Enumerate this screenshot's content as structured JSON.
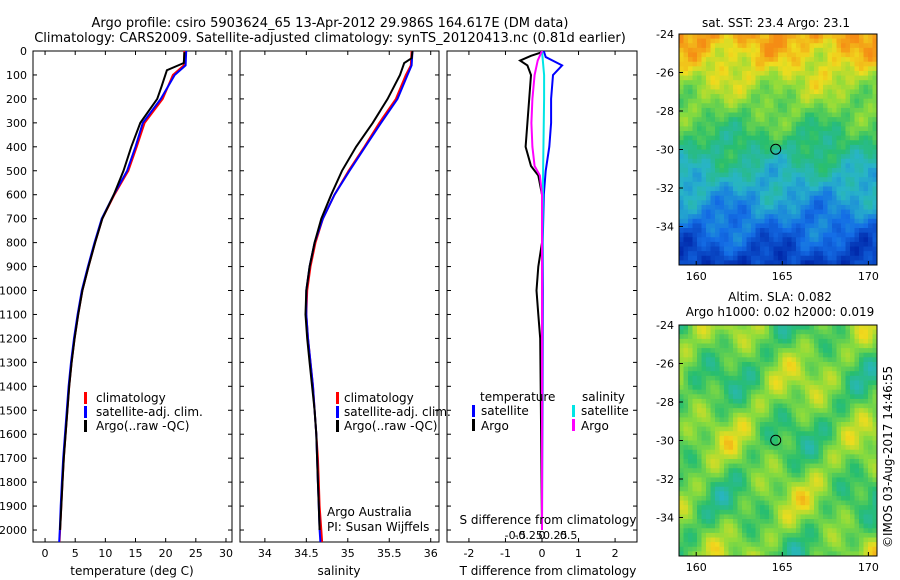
{
  "header": {
    "line1": "Argo profile: csiro 5903624_65 13-Apr-2012 29.986S 164.617E (DM data)",
    "line2": "Climatology: CARS2009. Satellite-adjusted climatology: synTS_20120413.nc (0.81d earlier)"
  },
  "footer": {
    "stamp": "©IMOS 03-Aug-2017 14:46:55",
    "institution": "Argo Australia",
    "pi": "PI: Susan Wijffels"
  },
  "colors": {
    "climatology": "#ff0000",
    "satellite": "#0000ff",
    "argo": "#000000",
    "salinity_satellite": "#00e5e5",
    "salinity_argo": "#ff00ff"
  },
  "chart_data": [
    {
      "type": "line",
      "panel": "temperature",
      "xlabel": "temperature (deg C)",
      "ylabel": "",
      "xlim": [
        -2,
        31
      ],
      "ylim": [
        2050,
        0
      ],
      "xticks": [
        0,
        5,
        10,
        15,
        20,
        25,
        30
      ],
      "yticks": [
        0,
        100,
        200,
        300,
        400,
        500,
        600,
        700,
        800,
        900,
        1000,
        1100,
        1200,
        1300,
        1400,
        1500,
        1600,
        1700,
        1800,
        1900,
        2000
      ],
      "legend": [
        "climatology",
        "satellite-adj. clim.",
        "Argo(..raw -QC)"
      ],
      "series": [
        {
          "name": "climatology",
          "color": "#ff0000",
          "points": [
            [
              23.1,
              0
            ],
            [
              23.0,
              60
            ],
            [
              21.2,
              100
            ],
            [
              19.5,
              200
            ],
            [
              16.5,
              300
            ],
            [
              15.2,
              400
            ],
            [
              13.8,
              500
            ],
            [
              11.5,
              600
            ],
            [
              9.5,
              700
            ],
            [
              8.3,
              800
            ],
            [
              7.2,
              900
            ],
            [
              6.2,
              1000
            ],
            [
              5.5,
              1100
            ],
            [
              4.9,
              1200
            ],
            [
              4.4,
              1300
            ],
            [
              4.0,
              1400
            ],
            [
              3.7,
              1500
            ],
            [
              3.4,
              1600
            ],
            [
              3.1,
              1700
            ],
            [
              2.9,
              1800
            ],
            [
              2.7,
              1900
            ],
            [
              2.5,
              2000
            ],
            [
              2.4,
              2050
            ]
          ]
        },
        {
          "name": "satellite-adj. clim.",
          "color": "#0000ff",
          "points": [
            [
              23.4,
              0
            ],
            [
              23.3,
              60
            ],
            [
              21.5,
              100
            ],
            [
              19.2,
              200
            ],
            [
              16.2,
              300
            ],
            [
              15.0,
              400
            ],
            [
              13.6,
              500
            ],
            [
              11.4,
              600
            ],
            [
              9.4,
              700
            ],
            [
              8.2,
              800
            ],
            [
              7.1,
              900
            ],
            [
              6.1,
              1000
            ],
            [
              5.4,
              1100
            ],
            [
              4.8,
              1200
            ],
            [
              4.3,
              1300
            ],
            [
              3.9,
              1400
            ],
            [
              3.6,
              1500
            ],
            [
              3.3,
              1600
            ],
            [
              3.0,
              1700
            ],
            [
              2.8,
              1800
            ],
            [
              2.6,
              1900
            ],
            [
              2.45,
              2000
            ],
            [
              2.35,
              2050
            ]
          ]
        },
        {
          "name": "Argo(..raw -QC)",
          "color": "#000000",
          "points": [
            [
              23.1,
              5
            ],
            [
              23.0,
              50
            ],
            [
              20.2,
              80
            ],
            [
              19.3,
              150
            ],
            [
              18.6,
              200
            ],
            [
              15.8,
              300
            ],
            [
              14.3,
              400
            ],
            [
              13.0,
              500
            ],
            [
              11.4,
              600
            ],
            [
              9.5,
              700
            ],
            [
              8.3,
              800
            ],
            [
              7.2,
              900
            ],
            [
              6.2,
              1000
            ],
            [
              5.5,
              1100
            ],
            [
              4.9,
              1200
            ],
            [
              4.4,
              1300
            ],
            [
              4.0,
              1400
            ],
            [
              3.7,
              1500
            ],
            [
              3.4,
              1600
            ],
            [
              3.1,
              1700
            ],
            [
              2.9,
              1800
            ],
            [
              2.7,
              1900
            ],
            [
              2.5,
              2000
            ]
          ]
        }
      ]
    },
    {
      "type": "line",
      "panel": "salinity",
      "xlabel": "salinity",
      "xlim": [
        33.7,
        36.1
      ],
      "ylim": [
        2050,
        0
      ],
      "xticks": [
        34,
        34.5,
        35,
        35.5,
        36
      ],
      "xticklabels": [
        "34",
        "34.5",
        "35",
        "35.5",
        "36"
      ],
      "legend": [
        "climatology",
        "satellite-adj. clim.",
        "Argo(..raw -QC)"
      ],
      "series": [
        {
          "name": "climatology",
          "color": "#ff0000",
          "points": [
            [
              35.77,
              0
            ],
            [
              35.76,
              60
            ],
            [
              35.7,
              100
            ],
            [
              35.58,
              200
            ],
            [
              35.38,
              300
            ],
            [
              35.2,
              400
            ],
            [
              35.01,
              500
            ],
            [
              34.84,
              600
            ],
            [
              34.7,
              700
            ],
            [
              34.61,
              800
            ],
            [
              34.55,
              900
            ],
            [
              34.51,
              1000
            ],
            [
              34.5,
              1100
            ],
            [
              34.52,
              1200
            ],
            [
              34.55,
              1300
            ],
            [
              34.58,
              1400
            ],
            [
              34.6,
              1500
            ],
            [
              34.62,
              1600
            ],
            [
              34.64,
              1700
            ],
            [
              34.65,
              1800
            ],
            [
              34.66,
              1900
            ],
            [
              34.68,
              2000
            ],
            [
              34.69,
              2050
            ]
          ]
        },
        {
          "name": "satellite-adj. clim.",
          "color": "#0000ff",
          "points": [
            [
              35.78,
              0
            ],
            [
              35.77,
              60
            ],
            [
              35.72,
              100
            ],
            [
              35.6,
              200
            ],
            [
              35.4,
              300
            ],
            [
              35.21,
              400
            ],
            [
              35.02,
              500
            ],
            [
              34.84,
              600
            ],
            [
              34.7,
              700
            ],
            [
              34.6,
              800
            ],
            [
              34.54,
              900
            ],
            [
              34.5,
              1000
            ],
            [
              34.5,
              1100
            ],
            [
              34.52,
              1200
            ],
            [
              34.55,
              1300
            ],
            [
              34.58,
              1400
            ],
            [
              34.6,
              1500
            ],
            [
              34.62,
              1600
            ],
            [
              34.63,
              1700
            ],
            [
              34.64,
              1800
            ],
            [
              34.65,
              1900
            ],
            [
              34.66,
              2000
            ],
            [
              34.67,
              2050
            ]
          ]
        },
        {
          "name": "Argo(..raw -QC)",
          "color": "#000000",
          "points": [
            [
              35.78,
              0
            ],
            [
              35.77,
              30
            ],
            [
              35.68,
              50
            ],
            [
              35.63,
              100
            ],
            [
              35.48,
              200
            ],
            [
              35.3,
              300
            ],
            [
              35.1,
              400
            ],
            [
              34.93,
              500
            ],
            [
              34.8,
              600
            ],
            [
              34.68,
              700
            ],
            [
              34.6,
              800
            ],
            [
              34.54,
              900
            ],
            [
              34.5,
              1000
            ],
            [
              34.49,
              1100
            ],
            [
              34.51,
              1200
            ],
            [
              34.54,
              1300
            ],
            [
              34.57,
              1400
            ],
            [
              34.6,
              1500
            ],
            [
              34.62,
              1600
            ],
            [
              34.63,
              1700
            ],
            [
              34.64,
              1800
            ],
            [
              34.65,
              1900
            ],
            [
              34.66,
              2000
            ]
          ]
        }
      ]
    },
    {
      "type": "line",
      "panel": "difference",
      "xlabel": "T difference from climatology",
      "xlabel_top": "S difference from climatology",
      "xlim": [
        -2.6,
        2.6
      ],
      "ylim": [
        2050,
        0
      ],
      "xticks": [
        -2,
        -1,
        0,
        1,
        2
      ],
      "s_ticks": [
        -0.5,
        -0.25,
        0,
        0.25,
        0.5
      ],
      "s_ticklabels": [
        "-0.5",
        "-0.25",
        "0",
        "0.25",
        "0.5"
      ],
      "legend_titles": [
        "temperature",
        "salinity"
      ],
      "legend": [
        "satellite",
        "Argo",
        "satellite",
        "Argo"
      ],
      "series": [
        {
          "name": "satellite",
          "group": "temperature",
          "color": "#0000ff",
          "points": [
            [
              0.05,
              0
            ],
            [
              0.1,
              25
            ],
            [
              0.55,
              60
            ],
            [
              0.3,
              100
            ],
            [
              0.25,
              200
            ],
            [
              0.25,
              300
            ],
            [
              0.2,
              400
            ],
            [
              0.1,
              500
            ],
            [
              0.05,
              600
            ],
            [
              0.02,
              800
            ],
            [
              0.02,
              1000
            ],
            [
              0.01,
              1500
            ],
            [
              0.0,
              2000
            ]
          ]
        },
        {
          "name": "Argo",
          "group": "temperature",
          "color": "#000000",
          "points": [
            [
              0.0,
              5
            ],
            [
              -0.3,
              20
            ],
            [
              -0.6,
              40
            ],
            [
              -0.4,
              60
            ],
            [
              -0.3,
              100
            ],
            [
              -0.35,
              200
            ],
            [
              -0.4,
              300
            ],
            [
              -0.45,
              400
            ],
            [
              -0.3,
              480
            ],
            [
              -0.1,
              520
            ],
            [
              0.0,
              600
            ],
            [
              0.0,
              800
            ],
            [
              -0.1,
              900
            ],
            [
              -0.15,
              1000
            ],
            [
              -0.1,
              1100
            ],
            [
              -0.05,
              1200
            ],
            [
              -0.03,
              1500
            ],
            [
              0.0,
              2000
            ]
          ]
        },
        {
          "name": "satellite",
          "group": "salinity",
          "color": "#00e5e5",
          "points": [
            [
              0.0,
              0
            ],
            [
              0.02,
              100
            ],
            [
              0.02,
              200
            ],
            [
              0.01,
              500
            ],
            [
              0.0,
              1000
            ],
            [
              0.0,
              2000
            ]
          ]
        },
        {
          "name": "Argo",
          "group": "salinity",
          "color": "#ff00ff",
          "points": [
            [
              0.0,
              0
            ],
            [
              -0.04,
              40
            ],
            [
              -0.07,
              100
            ],
            [
              -0.09,
              200
            ],
            [
              -0.1,
              300
            ],
            [
              -0.09,
              400
            ],
            [
              -0.07,
              480
            ],
            [
              -0.02,
              520
            ],
            [
              0.0,
              600
            ],
            [
              0.0,
              2000
            ]
          ]
        }
      ]
    },
    {
      "type": "heatmap",
      "panel": "sst_map",
      "title": "sat. SST: 23.4  Argo: 23.1",
      "xlim": [
        159,
        170.5
      ],
      "ylim": [
        -36,
        -24
      ],
      "xticks": [
        160,
        165,
        170
      ],
      "yticks": [
        -24,
        -26,
        -28,
        -30,
        -32,
        -34
      ],
      "marker": {
        "lon": 164.617,
        "lat": -29.986
      }
    },
    {
      "type": "heatmap",
      "panel": "sla_map",
      "title": "Altim. SLA: 0.082",
      "subtitle": "Argo h1000: 0.02 h2000: 0.019",
      "xlim": [
        159,
        170.5
      ],
      "ylim": [
        -36,
        -24
      ],
      "xticks": [
        160,
        165,
        170
      ],
      "yticks": [
        -24,
        -26,
        -28,
        -30,
        -32,
        -34
      ],
      "marker": {
        "lon": 164.617,
        "lat": -29.986
      }
    }
  ]
}
